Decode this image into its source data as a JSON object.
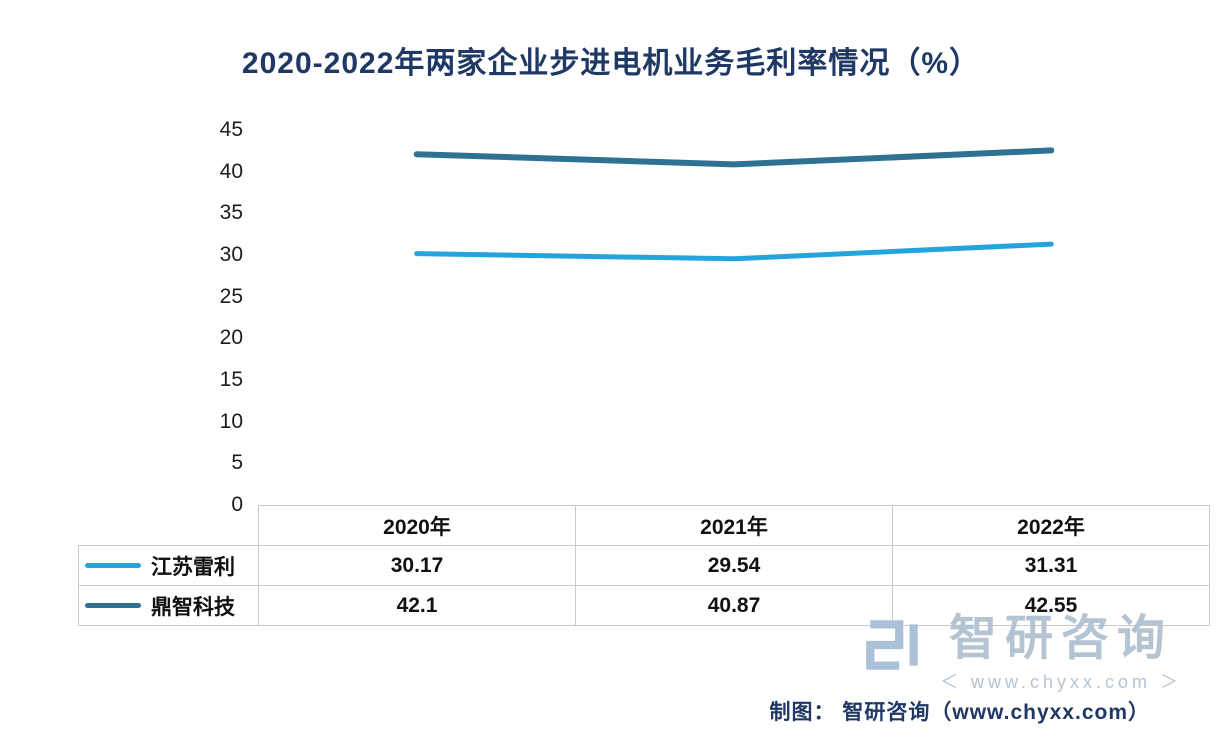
{
  "title": "2020-2022年两家企业步进电机业务毛利率情况（%）",
  "chart_data": {
    "type": "line",
    "title": "2020-2022年两家企业步进电机业务毛利率情况（%）",
    "categories": [
      "2020年",
      "2021年",
      "2022年"
    ],
    "series": [
      {
        "name": "江苏雷利",
        "values": [
          30.17,
          29.54,
          31.31
        ],
        "color": "#25a3dc"
      },
      {
        "name": "鼎智科技",
        "values": [
          42.1,
          40.87,
          42.55
        ],
        "color": "#2f7192"
      }
    ],
    "xlabel": "",
    "ylabel": "",
    "ylim": [
      0,
      45
    ],
    "yticks": [
      0,
      5,
      10,
      15,
      20,
      25,
      30,
      35,
      40,
      45
    ],
    "grid": false,
    "legend_position": "table-left"
  },
  "table": {
    "headers": [
      "2020年",
      "2021年",
      "2022年"
    ],
    "rows": [
      {
        "name": "江苏雷利",
        "values": [
          "30.17",
          "29.54",
          "31.31"
        ]
      },
      {
        "name": "鼎智科技",
        "values": [
          "42.1",
          "40.87",
          "42.55"
        ]
      }
    ]
  },
  "watermark": {
    "brand": "智研咨询",
    "url": "www.chyxx.com",
    "url_display": "＜ www.chyxx.com ＞"
  },
  "footer": {
    "credit": "制图： 智研咨询（www.chyxx.com）"
  },
  "colors": {
    "title": "#1f3864",
    "series1": "#25a3dc",
    "series2": "#2f7192",
    "watermark": "#b5c4d2",
    "table_border": "#c9c9c9"
  }
}
